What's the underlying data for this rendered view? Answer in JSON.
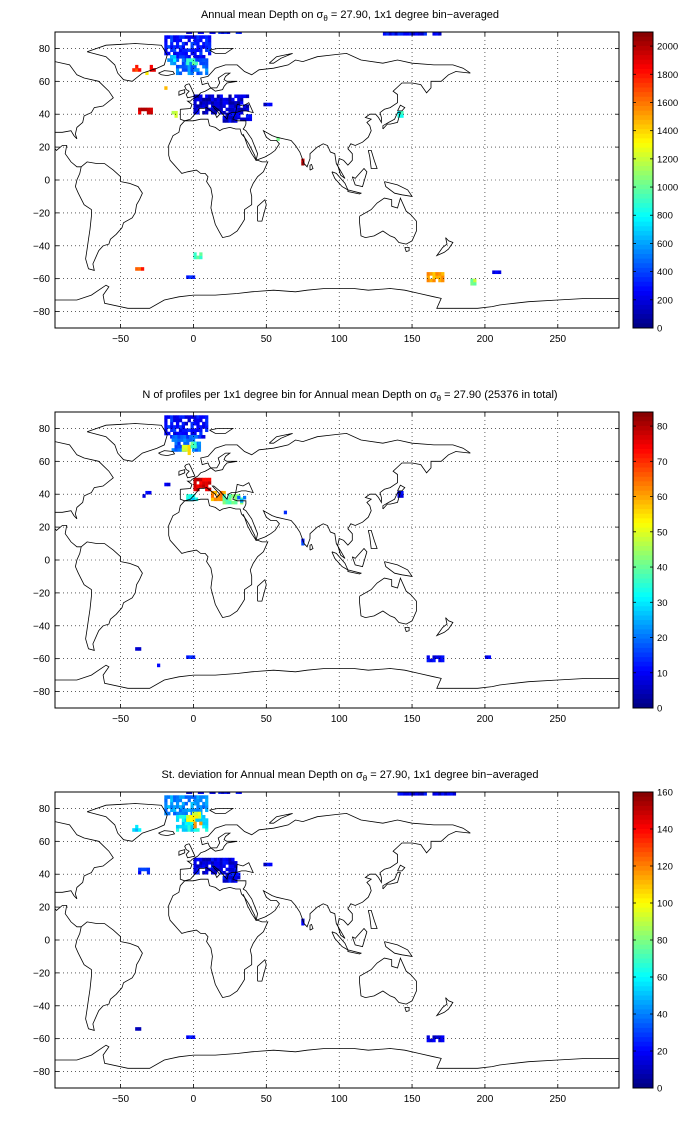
{
  "panels": [
    {
      "title": "Annual mean Depth on σθ = 27.90, 1x1 degree bin−averaged",
      "title_parts": {
        "pre": "Annual mean Depth on ",
        "sym": "σ",
        "sub": "θ",
        "post": " = 27.90, 1x1 degree bin−averaged"
      },
      "x_ticks": [
        "−50",
        "0",
        "50",
        "100",
        "150",
        "200",
        "250"
      ],
      "x_tick_values": [
        -50,
        0,
        50,
        100,
        150,
        200,
        250
      ],
      "y_ticks": [
        "80",
        "60",
        "40",
        "20",
        "0",
        "−20",
        "−40",
        "−60",
        "−80"
      ],
      "y_tick_values": [
        80,
        60,
        40,
        20,
        0,
        -20,
        -40,
        -60,
        -80
      ],
      "xlim": [
        -95,
        292
      ],
      "ylim": [
        -90,
        90
      ],
      "colorbar_ticks": [
        "2000",
        "1800",
        "1600",
        "1400",
        "1200",
        "1000",
        "800",
        "600",
        "400",
        "200",
        "0"
      ],
      "colorbar_values": [
        2000,
        1800,
        1600,
        1400,
        1200,
        1000,
        800,
        600,
        400,
        200,
        0
      ],
      "colorbar_range": [
        0,
        2100
      ]
    },
    {
      "title": "N of profiles per 1x1 degree bin for Annual mean Depth on σθ = 27.90 (25376 in total)",
      "title_parts": {
        "pre": "N of profiles per 1x1 degree bin for Annual mean Depth on ",
        "sym": "σ",
        "sub": "θ",
        "post": " = 27.90 (25376 in total)"
      },
      "x_ticks": [
        "−50",
        "0",
        "50",
        "100",
        "150",
        "200",
        "250"
      ],
      "x_tick_values": [
        -50,
        0,
        50,
        100,
        150,
        200,
        250
      ],
      "y_ticks": [
        "80",
        "60",
        "40",
        "20",
        "0",
        "−20",
        "−40",
        "−60",
        "−80"
      ],
      "y_tick_values": [
        80,
        60,
        40,
        20,
        0,
        -20,
        -40,
        -60,
        -80
      ],
      "xlim": [
        -95,
        292
      ],
      "ylim": [
        -90,
        90
      ],
      "colorbar_ticks": [
        "80",
        "70",
        "60",
        "50",
        "40",
        "30",
        "20",
        "10",
        "0"
      ],
      "colorbar_values": [
        80,
        70,
        60,
        50,
        40,
        30,
        20,
        10,
        0
      ],
      "colorbar_range": [
        0,
        84
      ]
    },
    {
      "title": "St. deviation for Annual mean Depth on σθ = 27.90, 1x1 degree bin−averaged",
      "title_parts": {
        "pre": "St. deviation for Annual mean Depth on ",
        "sym": "σ",
        "sub": "θ",
        "post": " = 27.90, 1x1 degree bin−averaged"
      },
      "x_ticks": [
        "−50",
        "0",
        "50",
        "100",
        "150",
        "200",
        "250"
      ],
      "x_tick_values": [
        -50,
        0,
        50,
        100,
        150,
        200,
        250
      ],
      "y_ticks": [
        "80",
        "60",
        "40",
        "20",
        "0",
        "−20",
        "−40",
        "−60",
        "−80"
      ],
      "y_tick_values": [
        80,
        60,
        40,
        20,
        0,
        -20,
        -40,
        -60,
        -80
      ],
      "xlim": [
        -95,
        292
      ],
      "ylim": [
        -90,
        90
      ],
      "colorbar_ticks": [
        "160",
        "140",
        "120",
        "100",
        "80",
        "60",
        "40",
        "20",
        "0"
      ],
      "colorbar_values": [
        160,
        140,
        120,
        100,
        80,
        60,
        40,
        20,
        0
      ],
      "colorbar_range": [
        0,
        160
      ]
    }
  ],
  "colormap": "jet",
  "grid": "dotted"
}
